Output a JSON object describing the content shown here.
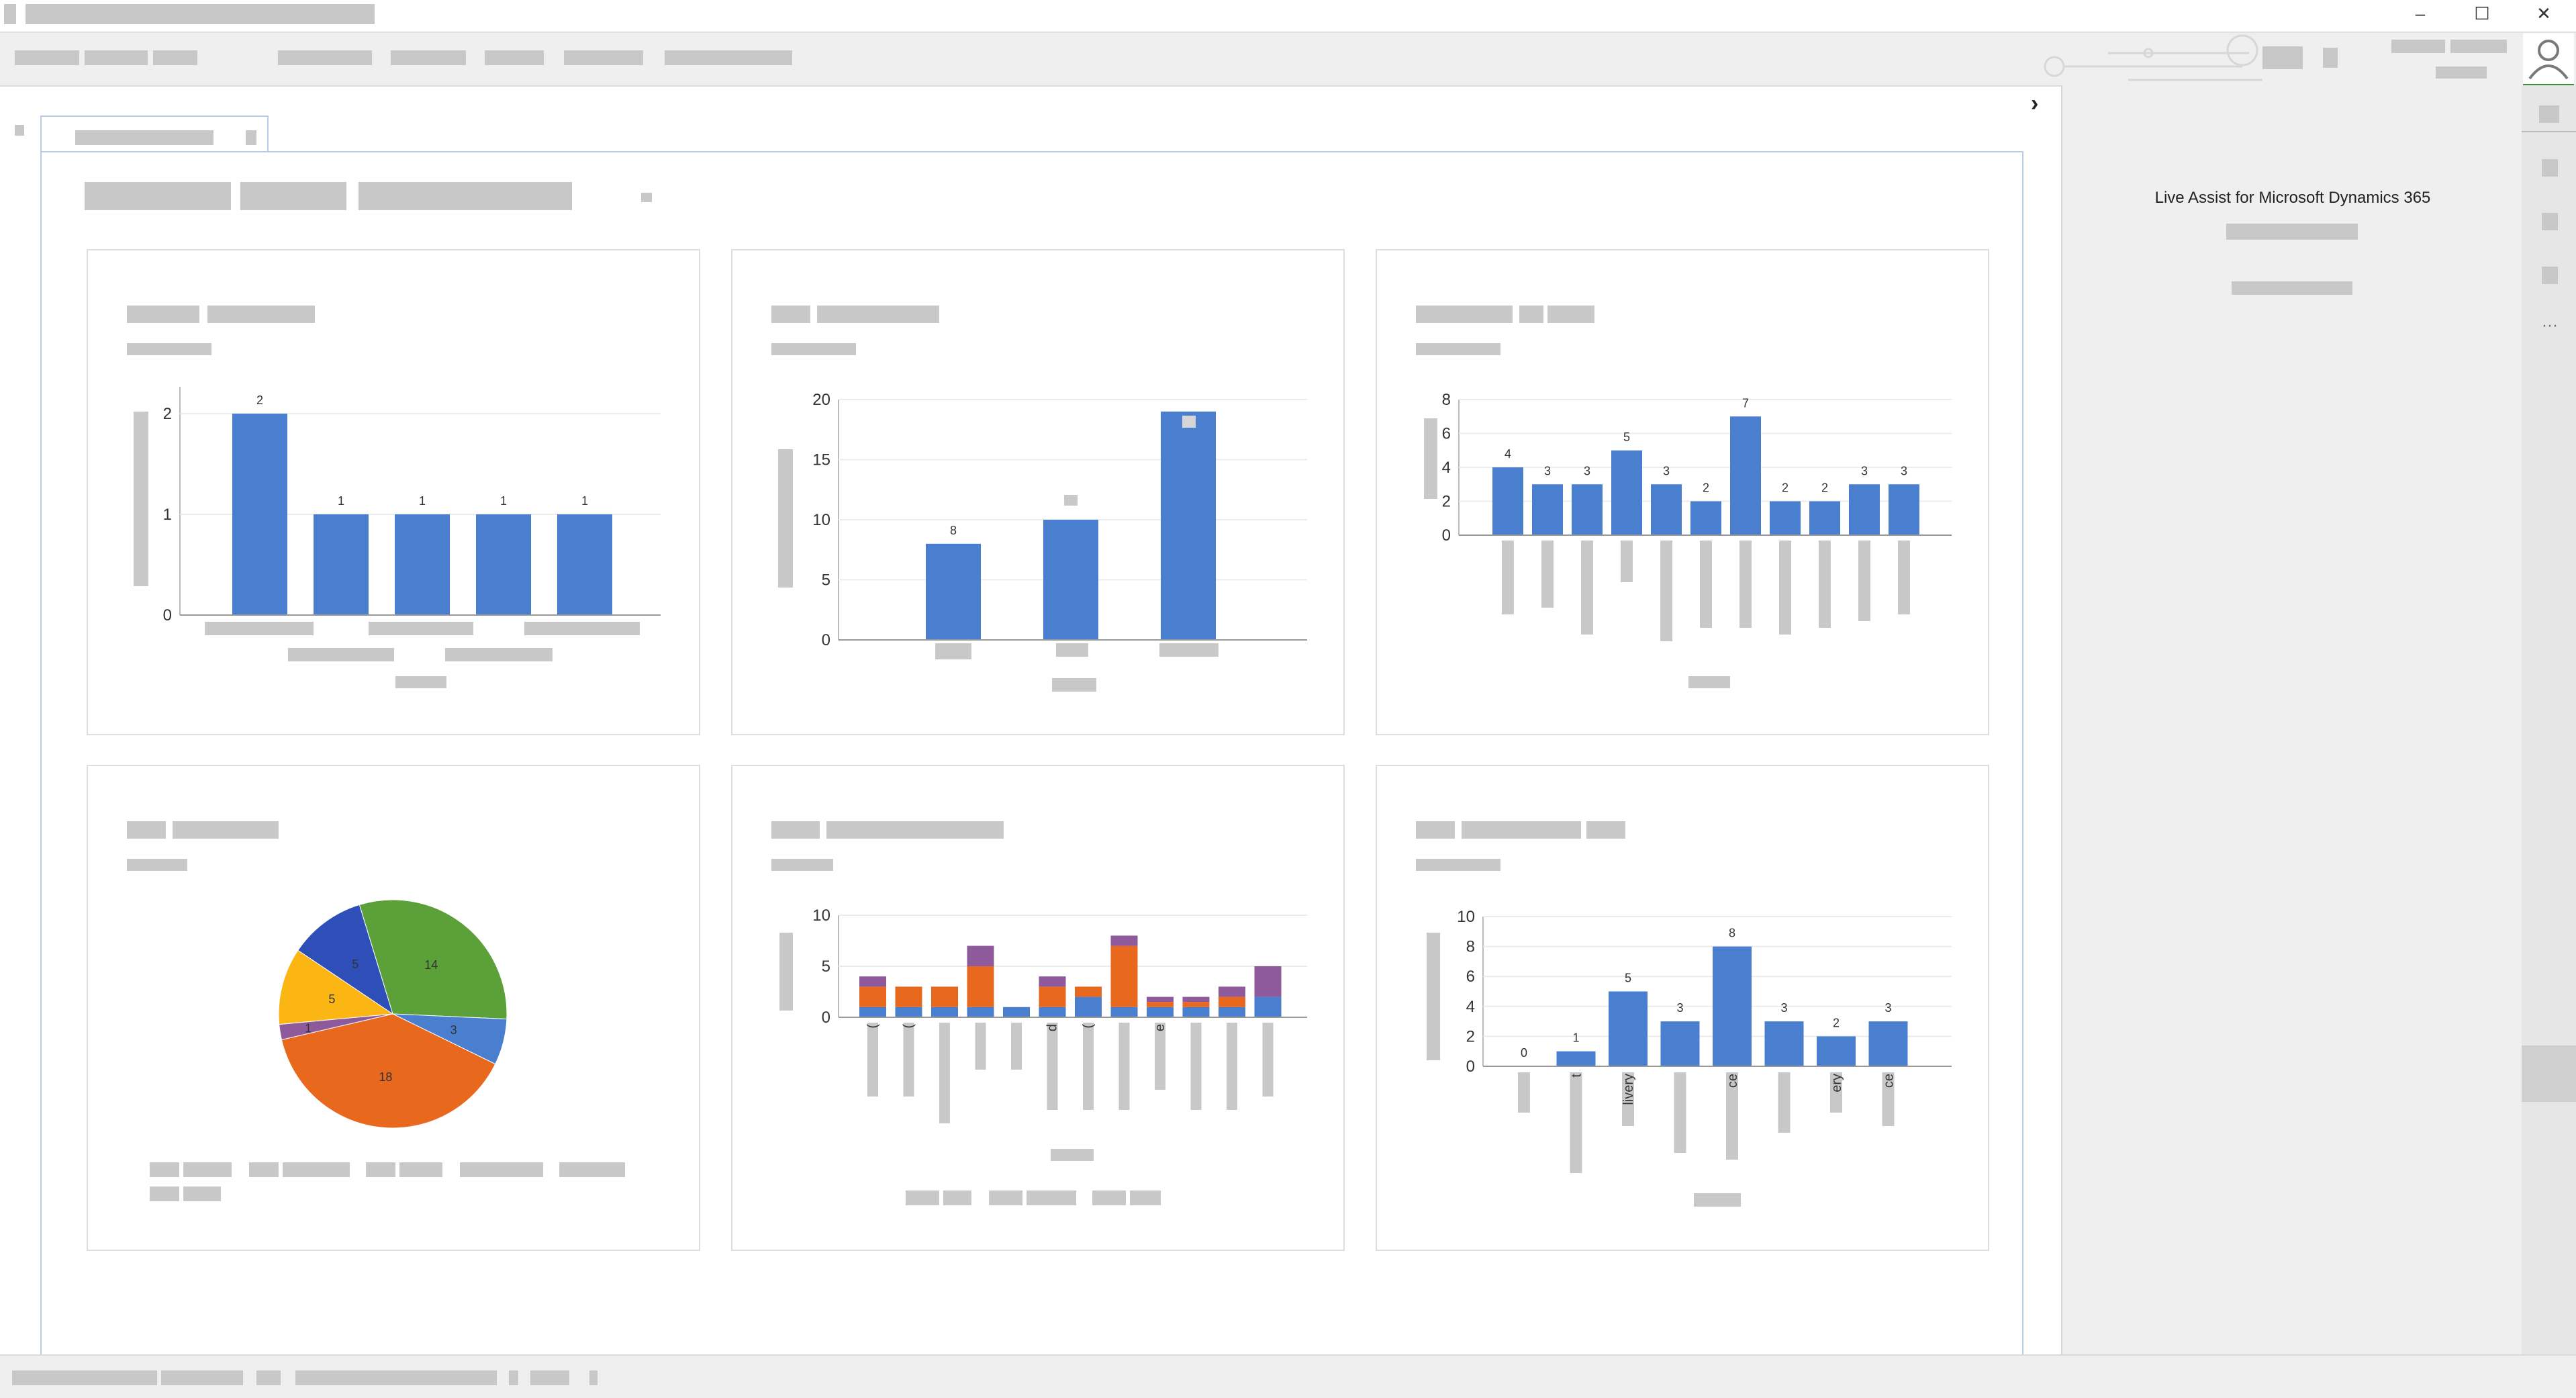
{
  "right_pane": {
    "title": "Live Assist for Microsoft Dynamics 365"
  },
  "window": {
    "minimize_glyph": "–",
    "maximize_glyph": "☐",
    "close_glyph": "✕"
  },
  "sidebar": {
    "collapse_glyph": "›",
    "more_glyph": "···"
  },
  "colors": {
    "bar_blue": "#4a7fcf",
    "orange": "#e8681e",
    "purple": "#8e5a9c",
    "green": "#5ca03a",
    "yellow": "#fbb614",
    "dark_blue": "#2e4fb8"
  },
  "chart_data": [
    {
      "type": "bar",
      "values": [
        2,
        1,
        1,
        1,
        1
      ],
      "data_labels": [
        "2",
        "1",
        "1",
        "1",
        "1"
      ],
      "yticks": [
        "0",
        "1",
        "2"
      ],
      "ylim": [
        0,
        2.2
      ]
    },
    {
      "type": "bar",
      "values": [
        8,
        10,
        19
      ],
      "data_labels": [
        "8",
        "",
        ""
      ],
      "yticks": [
        "0",
        "5",
        "10",
        "15",
        "20"
      ],
      "ylim": [
        0,
        20
      ]
    },
    {
      "type": "bar",
      "values": [
        4,
        3,
        3,
        5,
        3,
        2,
        7,
        2,
        2,
        3,
        3
      ],
      "data_labels": [
        "4",
        "3",
        "3",
        "5",
        "3",
        "2",
        "7",
        "2",
        "2",
        "3",
        "3"
      ],
      "yticks": [
        "0",
        "2",
        "4",
        "6",
        "8"
      ],
      "ylim": [
        0,
        8
      ]
    },
    {
      "type": "pie",
      "values": [
        14,
        3,
        18,
        1,
        5,
        5
      ],
      "data_labels": [
        "14",
        "3",
        "18",
        "1",
        "5",
        "5"
      ]
    },
    {
      "type": "bar",
      "stacked": true,
      "yticks": [
        "0",
        "5",
        "10"
      ],
      "ylim": [
        0,
        10
      ],
      "category_labels": [
        "(",
        "(",
        "",
        "",
        "",
        "d",
        "(",
        "",
        "e",
        "",
        "",
        ""
      ],
      "series": [
        {
          "values": [
            1,
            1,
            1,
            1,
            1,
            1,
            2,
            1,
            1,
            1,
            1,
            2
          ]
        },
        {
          "values": [
            2,
            2,
            2,
            4,
            0,
            2,
            1,
            6,
            0.5,
            0.5,
            1,
            0
          ]
        },
        {
          "values": [
            1,
            0,
            0,
            2,
            0,
            1,
            0,
            1,
            0.5,
            0.5,
            1,
            3
          ]
        }
      ]
    },
    {
      "type": "bar",
      "values": [
        0,
        1,
        5,
        3,
        8,
        3,
        2,
        3
      ],
      "data_labels": [
        "0",
        "1",
        "5",
        "3",
        "8",
        "3",
        "2",
        "3"
      ],
      "category_labels": [
        "",
        "t",
        "livery",
        "",
        "ce",
        "",
        "ery",
        "ce"
      ],
      "yticks": [
        "0",
        "2",
        "4",
        "6",
        "8",
        "10"
      ],
      "ylim": [
        0,
        10
      ]
    }
  ]
}
